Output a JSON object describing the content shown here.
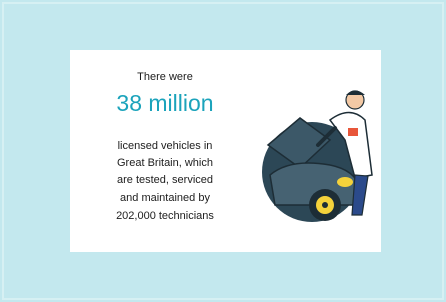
{
  "text": {
    "intro": "There were",
    "highlight": "38 million",
    "body": [
      "licensed vehicles in",
      "Great Britain, which",
      "are tested, serviced",
      "and maintained by",
      "202,000 technicians"
    ]
  }
}
